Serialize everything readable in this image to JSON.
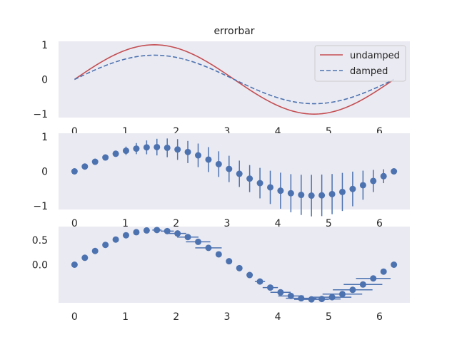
{
  "chart_data": [
    {
      "type": "line",
      "title": "errorbar",
      "xlim": [
        -0.314,
        6.597
      ],
      "ylim": [
        -1.1,
        1.1
      ],
      "xticks": [
        "0",
        "1",
        "2",
        "3",
        "4",
        "5",
        "6"
      ],
      "yticks": [
        "−1",
        "0",
        "1"
      ],
      "grid": false,
      "legend_position": "top-right",
      "series": [
        {
          "name": "undamped",
          "color": "#c44e52",
          "style": "solid",
          "function": "sin(x)",
          "x_range": [
            0,
            6.283
          ]
        },
        {
          "name": "damped",
          "color": "#4c72b0",
          "style": "dashed",
          "function": "0.7*sin(x)",
          "x_range": [
            0,
            6.283
          ]
        }
      ]
    },
    {
      "type": "scatter",
      "xlim": [
        -0.314,
        6.597
      ],
      "ylim": [
        -1.1,
        1.1
      ],
      "xticks": [
        "0",
        "1",
        "2",
        "3",
        "4",
        "5",
        "6"
      ],
      "yticks": [
        "−1",
        "0",
        "1"
      ],
      "color": "#4c72b0",
      "error_type": "vertical",
      "points": [
        {
          "x": 0.0,
          "y": 0.0,
          "err": 0.0
        },
        {
          "x": 0.203,
          "y": 0.14,
          "err": 0.01
        },
        {
          "x": 0.405,
          "y": 0.277,
          "err": 0.03
        },
        {
          "x": 0.608,
          "y": 0.4,
          "err": 0.06
        },
        {
          "x": 0.811,
          "y": 0.508,
          "err": 0.09
        },
        {
          "x": 1.013,
          "y": 0.594,
          "err": 0.12
        },
        {
          "x": 1.216,
          "y": 0.656,
          "err": 0.16
        },
        {
          "x": 1.419,
          "y": 0.692,
          "err": 0.2
        },
        {
          "x": 1.621,
          "y": 0.7,
          "err": 0.24
        },
        {
          "x": 1.824,
          "y": 0.679,
          "err": 0.27
        },
        {
          "x": 2.027,
          "y": 0.631,
          "err": 0.3
        },
        {
          "x": 2.229,
          "y": 0.558,
          "err": 0.32
        },
        {
          "x": 2.432,
          "y": 0.462,
          "err": 0.34
        },
        {
          "x": 2.635,
          "y": 0.34,
          "err": 0.36
        },
        {
          "x": 2.837,
          "y": 0.209,
          "err": 0.37
        },
        {
          "x": 3.04,
          "y": 0.07,
          "err": 0.38
        },
        {
          "x": 3.243,
          "y": -0.07,
          "err": 0.38
        },
        {
          "x": 3.445,
          "y": -0.209,
          "err": 0.39
        },
        {
          "x": 3.648,
          "y": -0.34,
          "err": 0.44
        },
        {
          "x": 3.851,
          "y": -0.462,
          "err": 0.48
        },
        {
          "x": 4.053,
          "y": -0.558,
          "err": 0.52
        },
        {
          "x": 4.256,
          "y": -0.631,
          "err": 0.55
        },
        {
          "x": 4.459,
          "y": -0.679,
          "err": 0.58
        },
        {
          "x": 4.661,
          "y": -0.7,
          "err": 0.6
        },
        {
          "x": 4.864,
          "y": -0.692,
          "err": 0.6
        },
        {
          "x": 5.067,
          "y": -0.656,
          "err": 0.58
        },
        {
          "x": 5.269,
          "y": -0.594,
          "err": 0.55
        },
        {
          "x": 5.472,
          "y": -0.508,
          "err": 0.5
        },
        {
          "x": 5.675,
          "y": -0.4,
          "err": 0.42
        },
        {
          "x": 5.877,
          "y": -0.277,
          "err": 0.32
        },
        {
          "x": 6.08,
          "y": -0.14,
          "err": 0.2
        },
        {
          "x": 6.283,
          "y": 0.0,
          "err": 0.0
        }
      ]
    },
    {
      "type": "scatter",
      "xlim": [
        -0.314,
        6.597
      ],
      "ylim": [
        -0.77,
        0.77
      ],
      "xticks": [
        "0",
        "1",
        "2",
        "3",
        "4",
        "5",
        "6"
      ],
      "yticks": [
        "0.0",
        "0.5"
      ],
      "color": "#4c72b0",
      "error_type": "horizontal",
      "points": [
        {
          "x": 0.0,
          "y": 0.0,
          "err": 0.0
        },
        {
          "x": 0.203,
          "y": 0.14,
          "err": 0.0
        },
        {
          "x": 0.405,
          "y": 0.277,
          "err": 0.0
        },
        {
          "x": 0.608,
          "y": 0.4,
          "err": 0.0
        },
        {
          "x": 0.811,
          "y": 0.508,
          "err": 0.0
        },
        {
          "x": 1.013,
          "y": 0.594,
          "err": 0.0
        },
        {
          "x": 1.216,
          "y": 0.656,
          "err": 0.02
        },
        {
          "x": 1.419,
          "y": 0.692,
          "err": 0.05
        },
        {
          "x": 1.621,
          "y": 0.7,
          "err": 0.09
        },
        {
          "x": 1.824,
          "y": 0.679,
          "err": 0.13
        },
        {
          "x": 2.027,
          "y": 0.631,
          "err": 0.17
        },
        {
          "x": 2.229,
          "y": 0.558,
          "err": 0.21
        },
        {
          "x": 2.432,
          "y": 0.462,
          "err": 0.24
        },
        {
          "x": 2.635,
          "y": 0.34,
          "err": 0.26
        },
        {
          "x": 2.837,
          "y": 0.209,
          "err": 0.0
        },
        {
          "x": 3.04,
          "y": 0.07,
          "err": 0.0
        },
        {
          "x": 3.243,
          "y": -0.07,
          "err": 0.0
        },
        {
          "x": 3.445,
          "y": -0.209,
          "err": 0.05
        },
        {
          "x": 3.648,
          "y": -0.34,
          "err": 0.1
        },
        {
          "x": 3.851,
          "y": -0.462,
          "err": 0.15
        },
        {
          "x": 4.053,
          "y": -0.558,
          "err": 0.2
        },
        {
          "x": 4.256,
          "y": -0.631,
          "err": 0.25
        },
        {
          "x": 4.459,
          "y": -0.679,
          "err": 0.3
        },
        {
          "x": 4.661,
          "y": -0.7,
          "err": 0.34
        },
        {
          "x": 4.864,
          "y": -0.692,
          "err": 0.37
        },
        {
          "x": 5.067,
          "y": -0.656,
          "err": 0.38
        },
        {
          "x": 5.269,
          "y": -0.594,
          "err": 0.39
        },
        {
          "x": 5.472,
          "y": -0.508,
          "err": 0.39
        },
        {
          "x": 5.675,
          "y": -0.4,
          "err": 0.38
        },
        {
          "x": 5.877,
          "y": -0.277,
          "err": 0.34
        },
        {
          "x": 6.08,
          "y": -0.14,
          "err": 0.0
        },
        {
          "x": 6.283,
          "y": 0.0,
          "err": 0.0
        }
      ]
    }
  ]
}
